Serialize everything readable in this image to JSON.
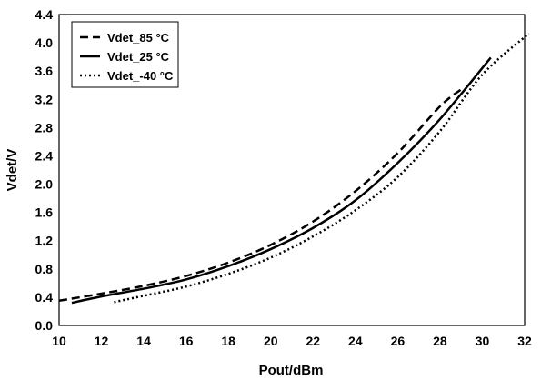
{
  "chart_data": {
    "type": "line",
    "title": "",
    "xlabel": "Pout/dBm",
    "ylabel": "Vdet/V",
    "xlim": [
      10,
      32
    ],
    "ylim": [
      0.0,
      4.4
    ],
    "xticks": [
      "10",
      "12",
      "14",
      "16",
      "18",
      "20",
      "22",
      "24",
      "26",
      "28",
      "30",
      "32"
    ],
    "yticks": [
      "0.0",
      "0.4",
      "0.8",
      "1.2",
      "1.6",
      "2.0",
      "2.4",
      "2.8",
      "3.2",
      "3.6",
      "4.0",
      "4.4"
    ],
    "grid": true,
    "legend_position": "top-left",
    "series": [
      {
        "name": "Vdet_85 °C",
        "line_style": "dashed",
        "color": "#000000",
        "x": [
          10,
          12,
          14,
          16,
          18,
          20,
          22,
          24,
          26,
          28,
          29
        ],
        "y": [
          0.35,
          0.45,
          0.56,
          0.7,
          0.89,
          1.14,
          1.47,
          1.9,
          2.44,
          3.1,
          3.34
        ]
      },
      {
        "name": "Vdet_25 °C",
        "line_style": "solid",
        "color": "#000000",
        "x": [
          10.6,
          12,
          14,
          16,
          18,
          20,
          22,
          24,
          26,
          28,
          30.4
        ],
        "y": [
          0.32,
          0.41,
          0.52,
          0.65,
          0.84,
          1.08,
          1.38,
          1.77,
          2.3,
          2.92,
          3.79
        ]
      },
      {
        "name": "Vdet_-40 °C",
        "line_style": "dotted",
        "color": "#000000",
        "x": [
          12.6,
          14,
          16,
          18,
          20,
          22,
          24,
          26,
          28,
          30,
          32.2
        ],
        "y": [
          0.33,
          0.42,
          0.55,
          0.73,
          0.96,
          1.26,
          1.63,
          2.1,
          2.75,
          3.55,
          4.13
        ]
      }
    ]
  }
}
